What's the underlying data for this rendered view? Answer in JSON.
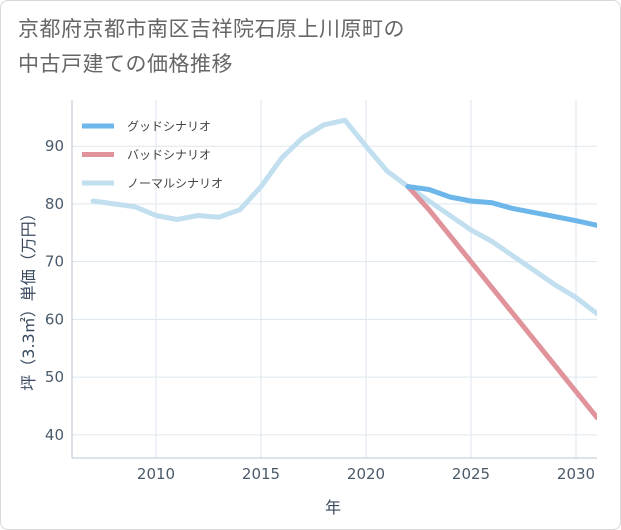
{
  "title": {
    "line1": "京都府京都市南区吉祥院石原上川原町の",
    "line2": "中古戸建ての価格推移"
  },
  "chart_data": {
    "type": "line",
    "xlabel": "年",
    "ylabel": "坪（3.3㎡）単価（万円）",
    "xlim": [
      2006,
      2031
    ],
    "ylim": [
      36,
      98
    ],
    "xticks": [
      2010,
      2015,
      2020,
      2025,
      2030
    ],
    "yticks": [
      40,
      50,
      60,
      70,
      80,
      90
    ],
    "grid": true,
    "legend_position": "top-left",
    "series": [
      {
        "name": "グッドシナリオ",
        "color": "#6cb6ea",
        "x": [
          2022,
          2023,
          2024,
          2025,
          2026,
          2027,
          2028,
          2029,
          2030,
          2031
        ],
        "y": [
          83.0,
          82.5,
          81.2,
          80.5,
          80.2,
          79.2,
          78.5,
          77.8,
          77.1,
          76.3
        ]
      },
      {
        "name": "バッドシナリオ",
        "color": "#e0939a",
        "x": [
          2022,
          2023,
          2024,
          2025,
          2026,
          2027,
          2028,
          2029,
          2030,
          2031
        ],
        "y": [
          83.0,
          79.0,
          74.5,
          70.0,
          65.5,
          61.0,
          56.5,
          52.0,
          47.5,
          43.0
        ]
      },
      {
        "name": "ノーマルシナリオ",
        "color": "#c2dff0",
        "x": [
          2007,
          2008,
          2009,
          2010,
          2011,
          2012,
          2013,
          2014,
          2015,
          2016,
          2017,
          2018,
          2019,
          2020,
          2021,
          2022,
          2023,
          2024,
          2025,
          2026,
          2027,
          2028,
          2029,
          2030,
          2031
        ],
        "y": [
          80.5,
          80.0,
          79.5,
          78.0,
          77.3,
          78.0,
          77.7,
          79.0,
          83.0,
          88.0,
          91.5,
          93.7,
          94.5,
          90.0,
          85.7,
          83.0,
          80.5,
          78.0,
          75.5,
          73.5,
          71.0,
          68.5,
          66.0,
          63.8,
          61.0
        ]
      }
    ]
  }
}
